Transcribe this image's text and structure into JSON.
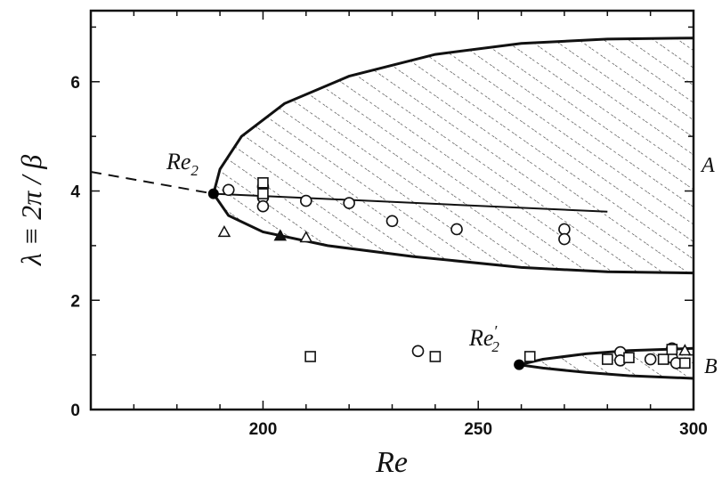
{
  "chart_data": {
    "type": "scatter",
    "title": "",
    "xlabel": "Re",
    "ylabel": "λ ≡ 2π / β",
    "xlim": [
      160,
      300
    ],
    "ylim": [
      0,
      7.3
    ],
    "x_ticks": [
      200,
      250,
      300
    ],
    "x_tick_labels": [
      "200",
      "250",
      "300"
    ],
    "y_ticks": [
      0,
      2,
      4,
      6
    ],
    "y_tick_labels": [
      "0",
      "2",
      "4",
      "6"
    ],
    "grid": false,
    "annotations": {
      "re2": {
        "base": "Re",
        "sub": "2",
        "x": 188.5,
        "y": 3.95
      },
      "re2_prime": {
        "base": "Re",
        "sup": "′",
        "sub": "2",
        "x": 259.5,
        "y": 0.82
      },
      "side_a": "A",
      "side_b": "B"
    },
    "region_a": {
      "vertex": [
        188.5,
        3.95
      ],
      "upper": [
        [
          188.5,
          3.95
        ],
        [
          190,
          4.4
        ],
        [
          195,
          5.0
        ],
        [
          205,
          5.6
        ],
        [
          220,
          6.1
        ],
        [
          240,
          6.5
        ],
        [
          260,
          6.7
        ],
        [
          280,
          6.78
        ],
        [
          300,
          6.8
        ]
      ],
      "lower": [
        [
          188.5,
          3.95
        ],
        [
          192,
          3.55
        ],
        [
          200,
          3.25
        ],
        [
          215,
          3.0
        ],
        [
          235,
          2.8
        ],
        [
          260,
          2.6
        ],
        [
          280,
          2.52
        ],
        [
          300,
          2.5
        ]
      ]
    },
    "region_b": {
      "vertex": [
        259.5,
        0.82
      ],
      "upper": [
        [
          259.5,
          0.82
        ],
        [
          265,
          0.92
        ],
        [
          275,
          1.02
        ],
        [
          285,
          1.08
        ],
        [
          300,
          1.12
        ]
      ],
      "lower": [
        [
          259.5,
          0.82
        ],
        [
          265,
          0.76
        ],
        [
          275,
          0.68
        ],
        [
          285,
          0.62
        ],
        [
          300,
          0.57
        ]
      ]
    },
    "dashed_line": [
      [
        160,
        4.35
      ],
      [
        188.5,
        3.95
      ]
    ],
    "center_line": [
      [
        188.5,
        3.95
      ],
      [
        280,
        3.62
      ]
    ],
    "bifurcation_points": [
      [
        188.5,
        3.95
      ],
      [
        259.5,
        0.82
      ]
    ],
    "series": [
      {
        "marker": "circle",
        "points": [
          [
            192,
            4.02
          ],
          [
            200,
            4.08
          ],
          [
            200,
            3.88
          ],
          [
            200,
            3.72
          ],
          [
            210,
            3.82
          ],
          [
            220,
            3.78
          ],
          [
            230,
            3.45
          ],
          [
            245,
            3.3
          ],
          [
            270,
            3.3
          ],
          [
            270,
            3.12
          ],
          [
            236,
            1.07
          ],
          [
            283,
            1.05
          ],
          [
            283,
            0.9
          ],
          [
            290,
            0.92
          ],
          [
            295,
            0.95
          ],
          [
            295,
            1.12
          ],
          [
            296,
            0.85
          ]
        ]
      },
      {
        "marker": "square",
        "points": [
          [
            200,
            4.15
          ],
          [
            200,
            3.95
          ],
          [
            211,
            0.97
          ],
          [
            240,
            0.97
          ],
          [
            262,
            0.97
          ],
          [
            280,
            0.92
          ],
          [
            285,
            0.95
          ],
          [
            293,
            0.92
          ],
          [
            295,
            1.1
          ],
          [
            298,
            0.85
          ]
        ]
      },
      {
        "marker": "triangle",
        "points": [
          [
            191,
            3.25
          ],
          [
            210,
            3.15
          ],
          [
            298,
            1.08
          ]
        ]
      },
      {
        "marker": "filled-triangle",
        "points": [
          [
            204,
            3.18
          ]
        ]
      }
    ]
  }
}
